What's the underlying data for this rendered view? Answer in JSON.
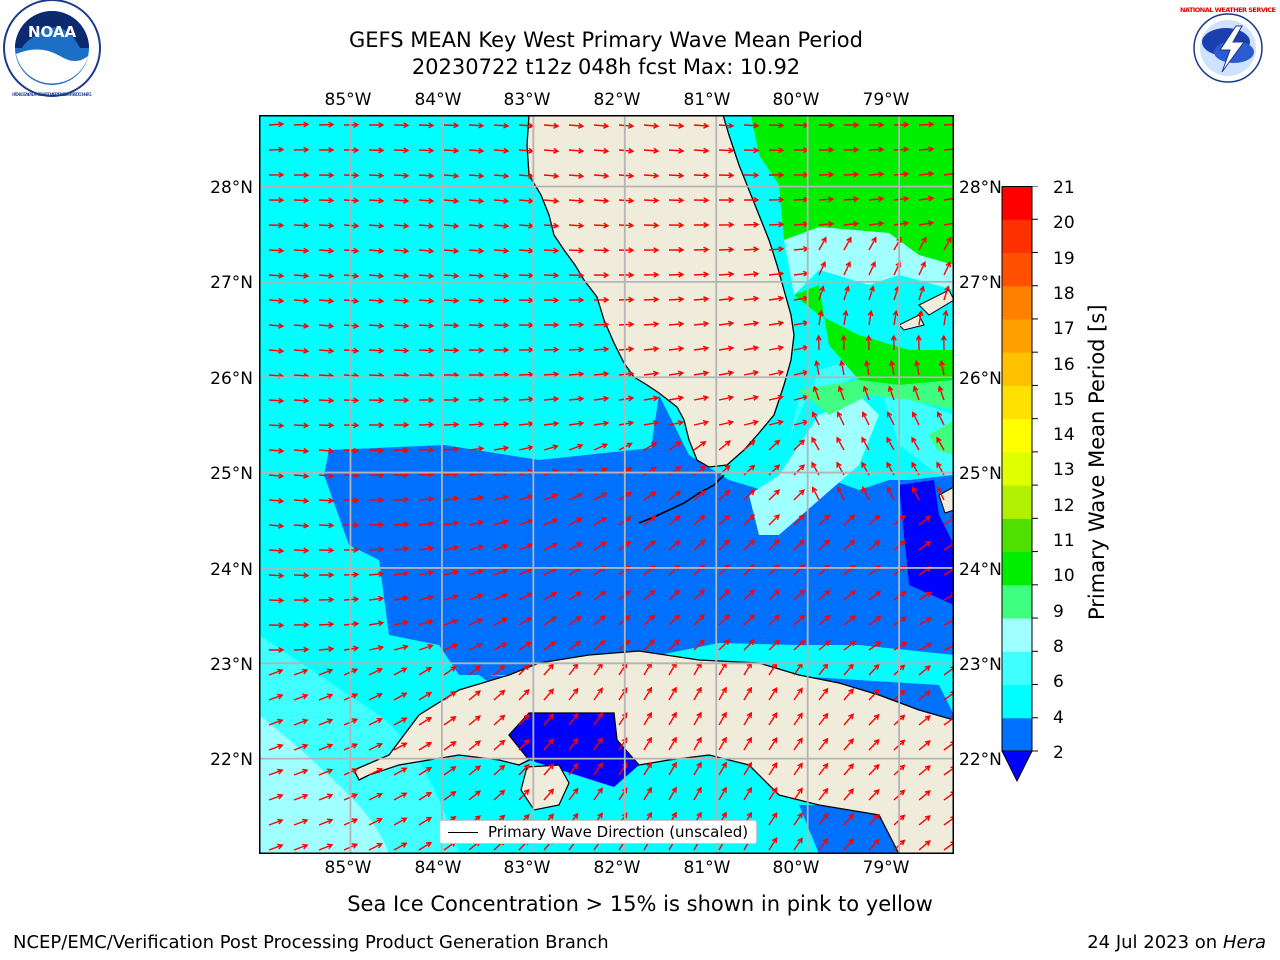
{
  "titles": {
    "line1": "GEFS MEAN Key West Primary Wave Mean Period",
    "line2": "20230722 t12z 048h fcst   Max: 10.92"
  },
  "logos": {
    "left": {
      "icon": "noaa-logo",
      "text": "NOAA",
      "ring_text": "NATIONAL OCEANIC AND ATMOSPHERIC ADMINISTRATION · U.S. DEPARTMENT OF COMMERCE"
    },
    "right": {
      "icon": "nws-logo",
      "ring_text": "NATIONAL WEATHER SERVICE"
    }
  },
  "map": {
    "lon_labels": [
      "85°W",
      "84°W",
      "83°W",
      "82°W",
      "81°W",
      "80°W",
      "79°W"
    ],
    "lat_labels": [
      "28°N",
      "27°N",
      "26°N",
      "25°N",
      "24°N",
      "23°N",
      "22°N"
    ],
    "extent": {
      "lon_min": -86.0,
      "lon_max": -78.4,
      "lat_min": 21.0,
      "lat_max": 28.75
    },
    "legend_text": "Primary Wave Direction (unscaled)",
    "land_color": "#efecdc",
    "arrow_color": "#ff0000",
    "grid_color": "#b4b4b4"
  },
  "colorbar": {
    "label": "Primary Wave Mean Period [s]",
    "ticks": [
      "21",
      "20",
      "19",
      "18",
      "17",
      "16",
      "15",
      "14",
      "13",
      "12",
      "11",
      "10",
      "9",
      "8",
      "6",
      "4",
      "2"
    ],
    "colors_bottom_to_top": [
      "#0070ff",
      "#00ffff",
      "#40ffff",
      "#a0ffff",
      "#40ff80",
      "#00ee00",
      "#50e000",
      "#b0f000",
      "#e0ff00",
      "#ffff00",
      "#ffe000",
      "#ffc000",
      "#ffa000",
      "#ff8000",
      "#ff5000",
      "#ff3000",
      "#ff0000"
    ],
    "under_color": "#0000ff"
  },
  "ice_note": "Sea Ice Concentration > 15% is shown in pink to yellow",
  "footer": {
    "left": "NCEP/EMC/Verification Post Processing Product Generation Branch",
    "right_prefix": "24 Jul 2023 on ",
    "right_host": "Hera"
  }
}
